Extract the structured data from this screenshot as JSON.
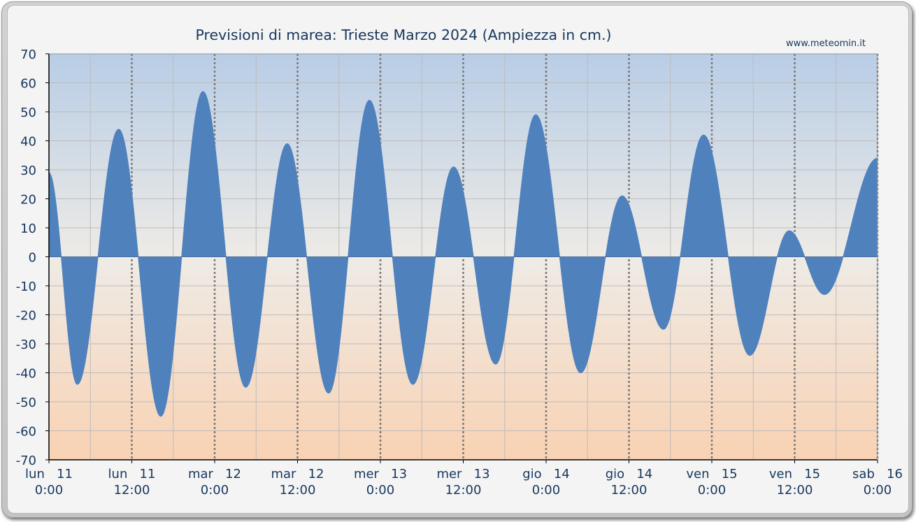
{
  "chart_data": {
    "type": "area",
    "title": "Previsioni di marea: Trieste Marzo 2024 (Ampiezza in cm.)",
    "watermark": "www.meteomin.it",
    "xlabel": "",
    "ylabel": "",
    "ylim": [
      -70,
      70
    ],
    "y_ticks": [
      "70",
      "60",
      "50",
      "40",
      "30",
      "20",
      "10",
      "0",
      "-10",
      "-20",
      "-30",
      "-40",
      "-50",
      "-60",
      "-70"
    ],
    "x_range_hours": [
      0,
      120
    ],
    "x_ticks": [
      {
        "hour": 0,
        "day": "lun",
        "date": "11",
        "time": "0:00"
      },
      {
        "hour": 12,
        "day": "lun",
        "date": "11",
        "time": "12:00"
      },
      {
        "hour": 24,
        "day": "mar",
        "date": "12",
        "time": "0:00"
      },
      {
        "hour": 36,
        "day": "mar",
        "date": "12",
        "time": "12:00"
      },
      {
        "hour": 48,
        "day": "mer",
        "date": "13",
        "time": "0:00"
      },
      {
        "hour": 60,
        "day": "mer",
        "date": "13",
        "time": "12:00"
      },
      {
        "hour": 72,
        "day": "gio",
        "date": "14",
        "time": "0:00"
      },
      {
        "hour": 84,
        "day": "gio",
        "date": "14",
        "time": "12:00"
      },
      {
        "hour": 96,
        "day": "ven",
        "date": "15",
        "time": "0:00"
      },
      {
        "hour": 108,
        "day": "ven",
        "date": "15",
        "time": "12:00"
      },
      {
        "hour": 120,
        "day": "sab",
        "date": "16",
        "time": "0:00"
      }
    ],
    "series": [
      {
        "color": "#4f81bd",
        "extrema": [
          {
            "hour": 0,
            "value": 29
          },
          {
            "hour": 4.1,
            "value": -44
          },
          {
            "hour": 10.1,
            "value": 44
          },
          {
            "hour": 16.2,
            "value": -55
          },
          {
            "hour": 22.3,
            "value": 57
          },
          {
            "hour": 28.5,
            "value": -45
          },
          {
            "hour": 34.5,
            "value": 39
          },
          {
            "hour": 40.5,
            "value": -47
          },
          {
            "hour": 46.4,
            "value": 54
          },
          {
            "hour": 52.7,
            "value": -44
          },
          {
            "hour": 58.6,
            "value": 31
          },
          {
            "hour": 64.7,
            "value": -37
          },
          {
            "hour": 70.5,
            "value": 49
          },
          {
            "hour": 77.0,
            "value": -40
          },
          {
            "hour": 83.0,
            "value": 21
          },
          {
            "hour": 89.0,
            "value": -25
          },
          {
            "hour": 94.8,
            "value": 42
          },
          {
            "hour": 101.5,
            "value": -34
          },
          {
            "hour": 107.2,
            "value": 9
          },
          {
            "hour": 112.3,
            "value": -13
          },
          {
            "hour": 120,
            "value": 34
          }
        ]
      }
    ],
    "grid": true
  }
}
